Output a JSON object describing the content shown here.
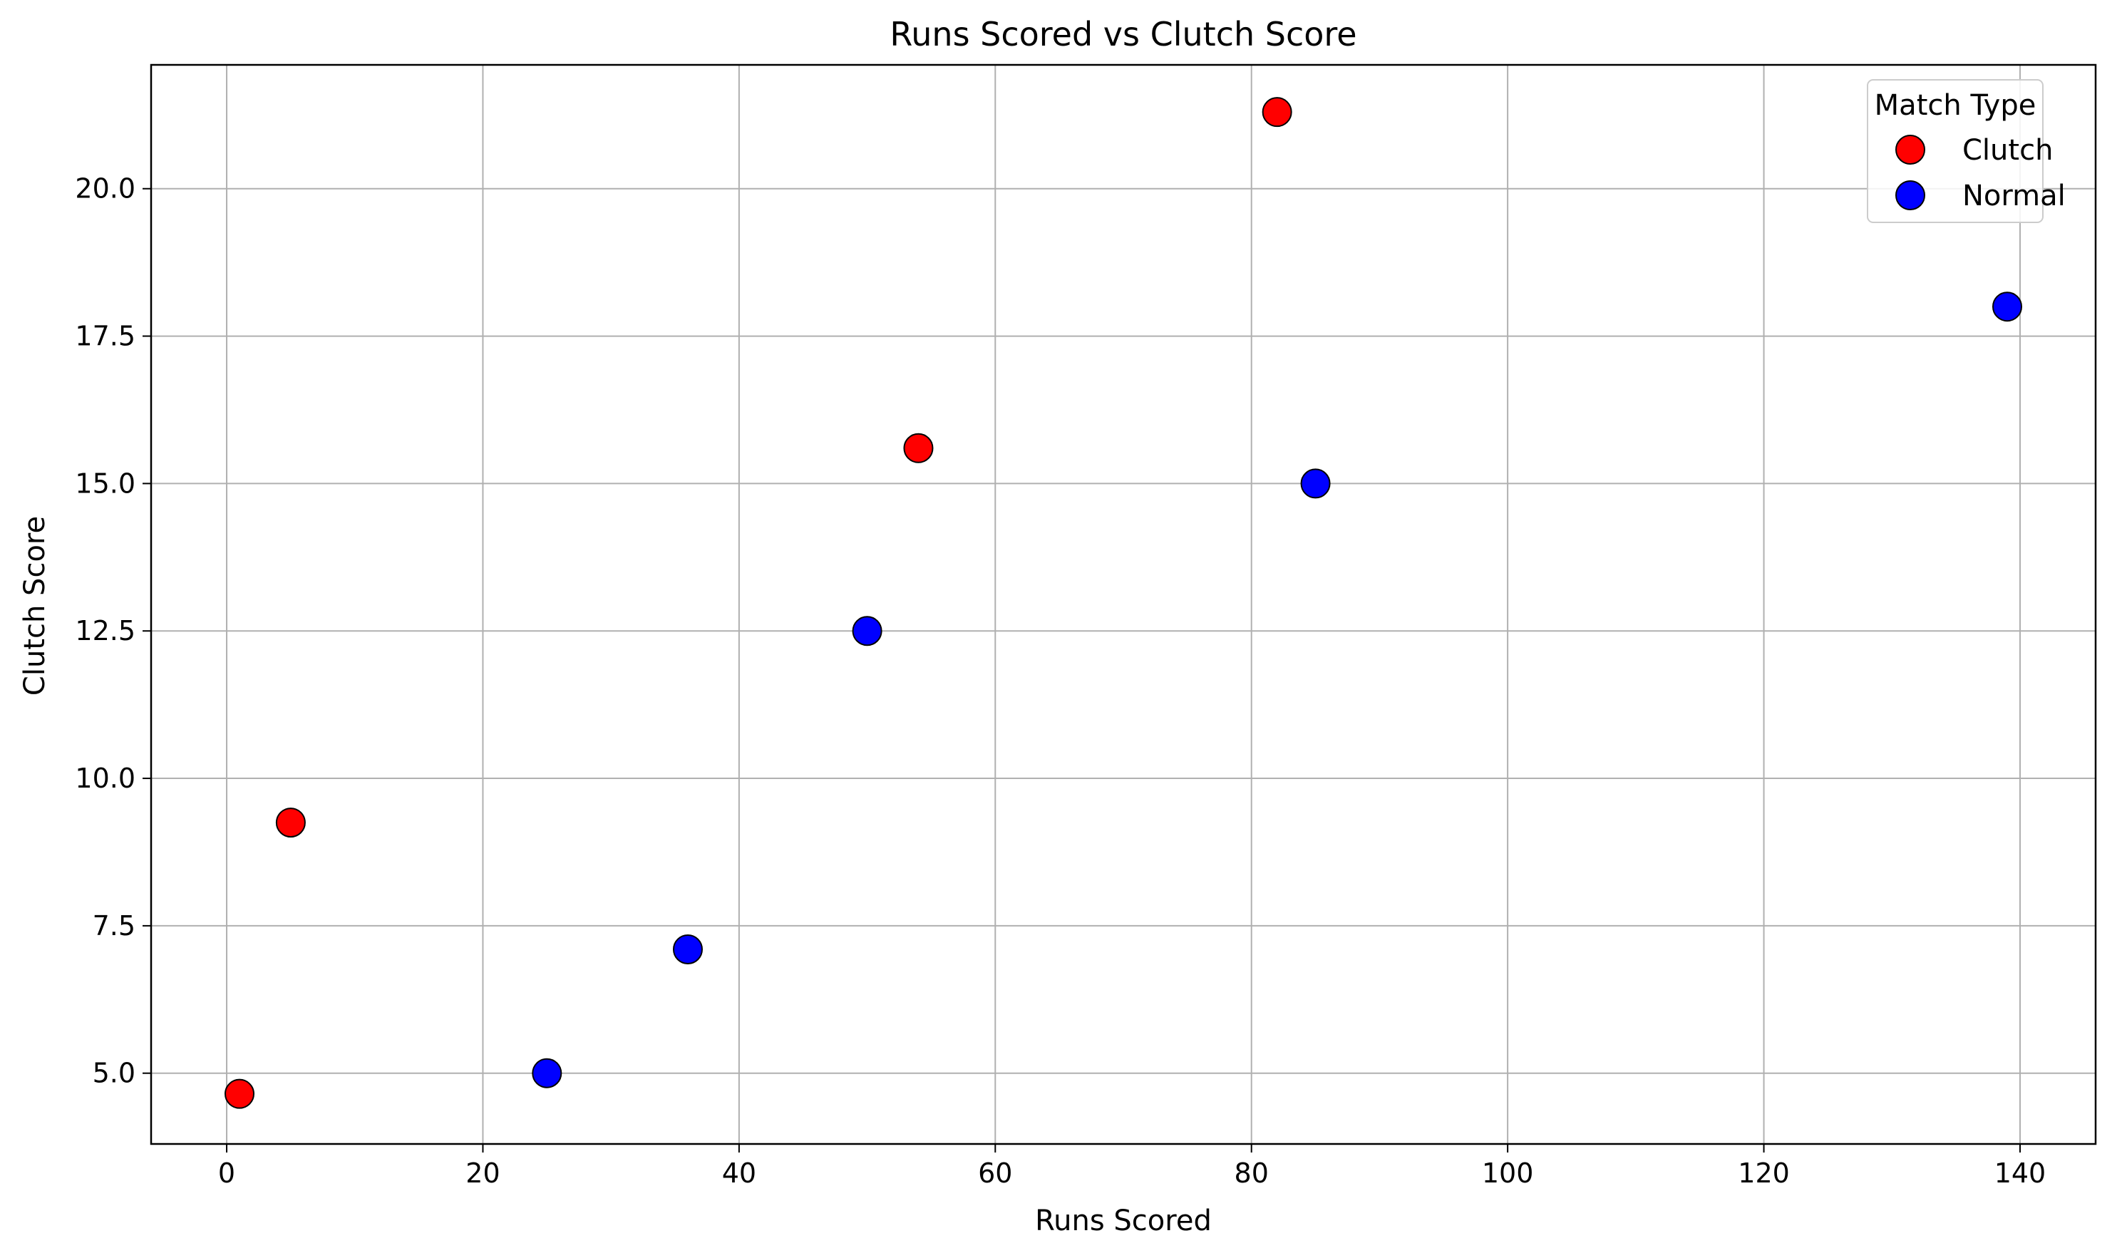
{
  "chart_data": {
    "type": "scatter",
    "title": "Runs Scored vs Clutch Score",
    "xlabel": "Runs Scored",
    "ylabel": "Clutch Score",
    "xlim": [
      -5.9,
      145.9
    ],
    "ylim": [
      3.8,
      22.1
    ],
    "xticks": [
      0,
      20,
      40,
      60,
      80,
      100,
      120,
      140
    ],
    "yticks": [
      5.0,
      7.5,
      10.0,
      12.5,
      15.0,
      17.5,
      20.0
    ],
    "grid": true,
    "legend": {
      "title": "Match Type",
      "placement": "top-right"
    },
    "series": [
      {
        "name": "Clutch",
        "color": "#ff0000",
        "points": [
          {
            "x": 1,
            "y": 4.65
          },
          {
            "x": 5,
            "y": 9.25
          },
          {
            "x": 54,
            "y": 15.6
          },
          {
            "x": 82,
            "y": 21.3
          }
        ]
      },
      {
        "name": "Normal",
        "color": "#0000ff",
        "points": [
          {
            "x": 25,
            "y": 5.0
          },
          {
            "x": 36,
            "y": 7.1
          },
          {
            "x": 50,
            "y": 12.5
          },
          {
            "x": 85,
            "y": 15.0
          },
          {
            "x": 139,
            "y": 18.0
          }
        ]
      }
    ]
  }
}
